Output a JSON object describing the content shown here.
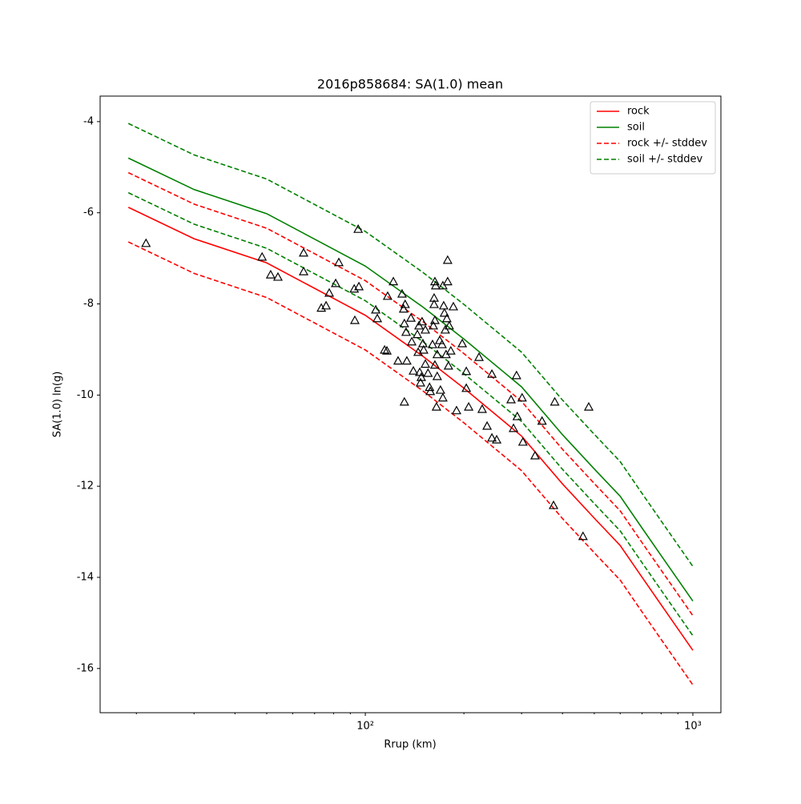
{
  "chart_data": {
    "type": "line",
    "title": "2016p858684: SA(1.0) mean",
    "xlabel": "Rrup (km)",
    "ylabel": "SA(1.0) ln(g)",
    "xscale": "log",
    "xlim": [
      15.5,
      1218
    ],
    "ylim": [
      -16.97,
      -3.44
    ],
    "xticks": [
      {
        "value": 100,
        "label": "10²"
      },
      {
        "value": 1000,
        "label": "10³"
      }
    ],
    "xminorticks": [
      20,
      30,
      40,
      50,
      60,
      70,
      80,
      90,
      200,
      300,
      400,
      500,
      600,
      700,
      800,
      900
    ],
    "yticks": [
      -16,
      -14,
      -12,
      -10,
      -8,
      -6,
      -4
    ],
    "legend_loc": "upper right",
    "x": [
      18.9,
      30,
      50,
      100,
      150,
      200,
      300,
      400,
      500,
      600,
      700,
      800,
      1000
    ],
    "series": [
      {
        "name": "rock",
        "color": "#ff0000",
        "dashed": false,
        "values": [
          -5.88,
          -6.57,
          -7.1,
          -8.25,
          -9.15,
          -9.85,
          -10.9,
          -11.95,
          -12.7,
          -13.3,
          -14.0,
          -14.6,
          -15.6
        ]
      },
      {
        "name": "soil",
        "color": "#008000",
        "dashed": false,
        "values": [
          -4.8,
          -5.49,
          -6.02,
          -7.17,
          -8.07,
          -8.77,
          -9.82,
          -10.87,
          -11.62,
          -12.22,
          -12.92,
          -13.52,
          -14.52
        ]
      },
      {
        "name": "rock +/- stddev",
        "color": "#ff0000",
        "dashed": true,
        "upper": [
          -5.12,
          -5.81,
          -6.34,
          -7.49,
          -8.39,
          -9.09,
          -10.14,
          -11.19,
          -11.94,
          -12.54,
          -13.24,
          -13.84,
          -14.84
        ],
        "lower": [
          -6.64,
          -7.33,
          -7.86,
          -9.01,
          -9.91,
          -10.61,
          -11.66,
          -12.71,
          -13.46,
          -14.06,
          -14.76,
          -15.36,
          -16.36
        ]
      },
      {
        "name": "soil +/- stddev",
        "color": "#008000",
        "dashed": true,
        "upper": [
          -4.04,
          -4.73,
          -5.26,
          -6.41,
          -7.31,
          -8.01,
          -9.06,
          -10.11,
          -10.86,
          -11.46,
          -12.16,
          -12.76,
          -13.76
        ],
        "lower": [
          -5.56,
          -6.25,
          -6.78,
          -7.93,
          -8.83,
          -9.53,
          -10.58,
          -11.63,
          -12.38,
          -12.98,
          -13.68,
          -14.28,
          -15.28
        ]
      }
    ],
    "points": {
      "color": "#000000",
      "x": [
        21.4,
        48.4,
        51.4,
        54.1,
        64.8,
        64.8,
        73.4,
        75.9,
        77.6,
        81.2,
        83.0,
        92.5,
        92.9,
        95.1,
        95.6,
        107.6,
        108.8,
        114.5,
        116.4,
        117,
        121.8,
        125.9,
        129.5,
        130.9,
        131.6,
        132.3,
        131.6,
        133.2,
        133.9,
        137.8,
        138.6,
        140.2,
        144.2,
        145,
        145.8,
        146.6,
        147.4,
        148.2,
        149,
        149.9,
        150.7,
        152.5,
        152.5,
        155.4,
        157.1,
        157.9,
        160.4,
        161.3,
        162.2,
        162.2,
        163.1,
        163.1,
        163.1,
        164,
        164.9,
        165.8,
        165.8,
        168.7,
        169.6,
        171.5,
        172.5,
        172.5,
        173.5,
        174.4,
        175.4,
        176.4,
        177.4,
        178.4,
        178.4,
        179.4,
        180.4,
        182.4,
        185.7,
        189.9,
        197.7,
        203.4,
        203.4,
        206.8,
        222.4,
        227.4,
        235.4,
        243.5,
        243.5,
        251.8,
        278.6,
        283.4,
        289.5,
        291,
        301.1,
        302.8,
        329.8,
        346.4,
        375.5,
        378.8,
        462,
        481
      ],
      "y": [
        -6.67,
        -6.97,
        -7.36,
        -7.41,
        -6.88,
        -7.29,
        -8.09,
        -8.04,
        -7.76,
        -7.55,
        -7.09,
        -7.67,
        -8.36,
        -6.36,
        -7.62,
        -8.13,
        -8.32,
        -9.01,
        -9.03,
        -7.83,
        -7.51,
        -9.25,
        -7.78,
        -8.11,
        -10.15,
        -8.01,
        -8.43,
        -8.62,
        -9.25,
        -8.31,
        -8.83,
        -9.47,
        -8.67,
        -9.06,
        -8.48,
        -9.5,
        -9.73,
        -9.61,
        -8.39,
        -8.87,
        -9.01,
        -9.32,
        -8.57,
        -9.52,
        -9.83,
        -9.92,
        -8.89,
        -8.48,
        -7.87,
        -8.01,
        -9.34,
        -8.36,
        -7.51,
        -7.6,
        -10.26,
        -9.11,
        -9.59,
        -8.8,
        -9.89,
        -8.89,
        -7.6,
        -10.06,
        -8.04,
        -8.2,
        -8.57,
        -9.11,
        -8.32,
        -7.04,
        -7.51,
        -9.36,
        -8.48,
        -9.03,
        -8.06,
        -10.34,
        -8.87,
        -9.48,
        -9.85,
        -10.26,
        -9.17,
        -10.31,
        -10.68,
        -10.94,
        -9.54,
        -10.98,
        -10.1,
        -10.73,
        -9.57,
        -10.47,
        -10.06,
        -11.03,
        -11.33,
        -10.57,
        -12.42,
        -10.15,
        -13.1,
        -10.26
      ]
    }
  }
}
